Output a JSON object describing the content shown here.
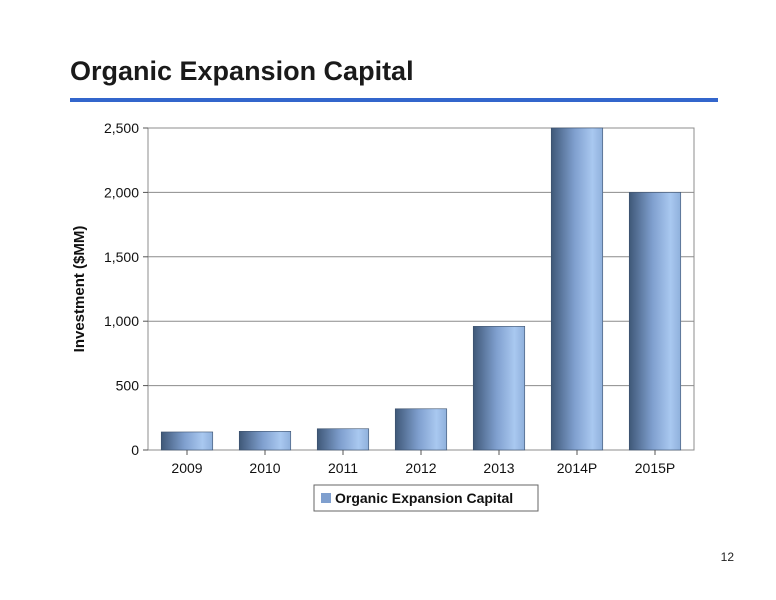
{
  "page": {
    "title": "Organic Expansion Capital",
    "page_number": "12"
  },
  "chart_data": {
    "type": "bar",
    "title": "",
    "xlabel": "",
    "ylabel": "Investment ($MM)",
    "categories": [
      "2009",
      "2010",
      "2011",
      "2012",
      "2013",
      "2014P",
      "2015P"
    ],
    "series": [
      {
        "name": "Organic Expansion Capital",
        "values": [
          140,
          145,
          165,
          320,
          960,
          2500,
          2000
        ]
      }
    ],
    "ylim": [
      0,
      2500
    ],
    "yticks": [
      0,
      500,
      1000,
      1500,
      2000,
      2500
    ],
    "ytick_labels": [
      "0",
      "500",
      "1,000",
      "1,500",
      "2,000",
      "2,500"
    ],
    "grid": true,
    "legend_position": "bottom",
    "colors": {
      "bar_light": "#a9c8f0",
      "bar_mid": "#7f9fce",
      "bar_dark": "#3f5878",
      "title_rule": "#3366cc",
      "gridline": "#8c8c8c"
    }
  }
}
